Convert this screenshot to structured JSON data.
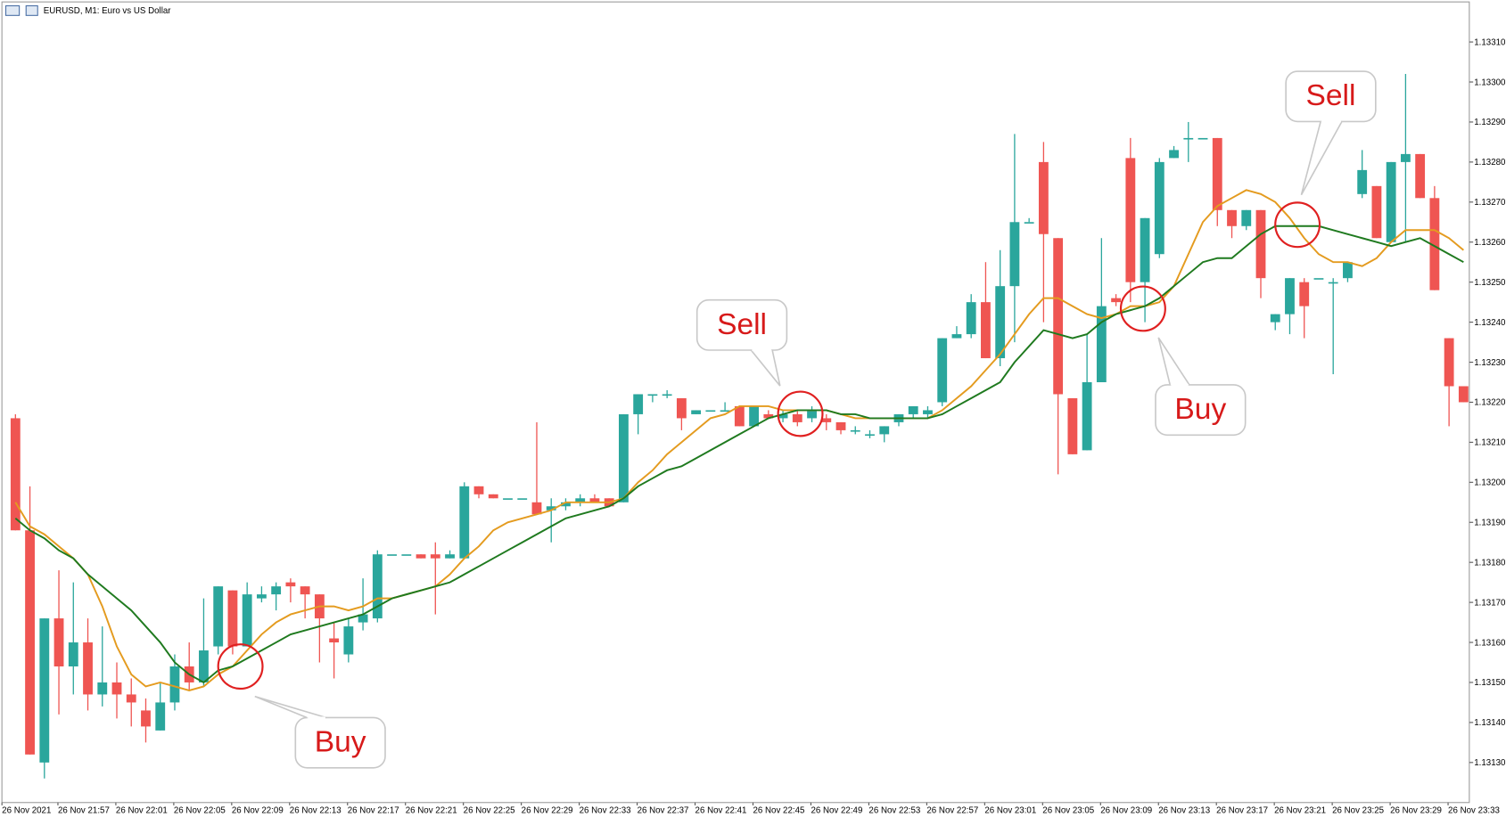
{
  "chart_data": {
    "type": "candlestick",
    "title": "EURUSD, M1:  Euro vs US Dollar",
    "up_color": "#2aa69c",
    "down_color": "#ef5552",
    "ylim": [
      1.1312,
      1.1332
    ],
    "yticks": [
      {
        "value": 1.1313,
        "label": "1.13130"
      },
      {
        "value": 1.1314,
        "label": "1.13140"
      },
      {
        "value": 1.1315,
        "label": "1.13150"
      },
      {
        "value": 1.1316,
        "label": "1.13160"
      },
      {
        "value": 1.1317,
        "label": "1.13170"
      },
      {
        "value": 1.1318,
        "label": "1.13180"
      },
      {
        "value": 1.1319,
        "label": "1.13190"
      },
      {
        "value": 1.132,
        "label": "1.13200"
      },
      {
        "value": 1.1321,
        "label": "1.13210"
      },
      {
        "value": 1.1322,
        "label": "1.13220"
      },
      {
        "value": 1.1323,
        "label": "1.13230"
      },
      {
        "value": 1.1324,
        "label": "1.13240"
      },
      {
        "value": 1.1325,
        "label": "1.13250"
      },
      {
        "value": 1.1326,
        "label": "1.13260"
      },
      {
        "value": 1.1327,
        "label": "1.13270"
      },
      {
        "value": 1.1328,
        "label": "1.13280"
      },
      {
        "value": 1.1329,
        "label": "1.13290"
      },
      {
        "value": 1.133,
        "label": "1.13300"
      },
      {
        "value": 1.1331,
        "label": "1.13310"
      }
    ],
    "x_labels": [
      "26 Nov 2021",
      "26 Nov 21:57",
      "26 Nov 22:01",
      "26 Nov 22:05",
      "26 Nov 22:09",
      "26 Nov 22:13",
      "26 Nov 22:17",
      "26 Nov 22:21",
      "26 Nov 22:25",
      "26 Nov 22:29",
      "26 Nov 22:33",
      "26 Nov 22:37",
      "26 Nov 22:41",
      "26 Nov 22:45",
      "26 Nov 22:49",
      "26 Nov 22:53",
      "26 Nov 22:57",
      "26 Nov 23:01",
      "26 Nov 23:05",
      "26 Nov 23:09",
      "26 Nov 23:13",
      "26 Nov 23:17",
      "26 Nov 23:21",
      "26 Nov 23:25",
      "26 Nov 23:29",
      "26 Nov 23:33"
    ],
    "open": [
      1.13216,
      1.13188,
      1.1313,
      1.13166,
      1.13154,
      1.1316,
      1.13147,
      1.1315,
      1.13147,
      1.13143,
      1.13138,
      1.13145,
      1.13154,
      1.1315,
      1.13159,
      1.13173,
      1.13159,
      1.13171,
      1.13172,
      1.13175,
      1.13174,
      1.13172,
      1.13161,
      1.13157,
      1.13165,
      1.13166,
      1.13182,
      1.13182,
      1.13182,
      1.13182,
      1.13181,
      1.13181,
      1.13199,
      1.13197,
      1.13196,
      1.13196,
      1.13195,
      1.13193,
      1.13194,
      1.13195,
      1.13196,
      1.13196,
      1.13195,
      1.13217,
      1.13222,
      1.13222,
      1.13221,
      1.13217,
      1.13218,
      1.13218,
      1.13219,
      1.13214,
      1.13217,
      1.13216,
      1.13217,
      1.13216,
      1.13216,
      1.13215,
      1.13213,
      1.13212,
      1.13212,
      1.13215,
      1.13217,
      1.13217,
      1.1322,
      1.13236,
      1.13237,
      1.13245,
      1.13231,
      1.13249,
      1.13265,
      1.1328,
      1.13261,
      1.13221,
      1.13208,
      1.13225,
      1.13246,
      1.13281,
      1.1325,
      1.13257,
      1.13281,
      1.13286,
      1.13286,
      1.13286,
      1.13268,
      1.13264,
      1.13268,
      1.1324,
      1.13242,
      1.1325,
      1.13251,
      1.1325,
      1.13251,
      1.13272,
      1.13274,
      1.1326,
      1.1328,
      1.13282,
      1.13271,
      1.13236,
      1.13224
    ],
    "high": [
      1.13217,
      1.13199,
      1.13166,
      1.13178,
      1.13175,
      1.13166,
      1.13164,
      1.13155,
      1.13151,
      1.13146,
      1.1315,
      1.13157,
      1.1316,
      1.13171,
      1.13174,
      1.13173,
      1.13175,
      1.13174,
      1.13175,
      1.13176,
      1.13174,
      1.13172,
      1.13165,
      1.13166,
      1.13176,
      1.13183,
      1.13182,
      1.13182,
      1.13182,
      1.13185,
      1.13183,
      1.132,
      1.13199,
      1.13197,
      1.13196,
      1.13196,
      1.13215,
      1.13196,
      1.13196,
      1.13197,
      1.13197,
      1.13196,
      1.13217,
      1.13222,
      1.13222,
      1.13223,
      1.13221,
      1.13218,
      1.13218,
      1.1322,
      1.13219,
      1.13219,
      1.13218,
      1.13218,
      1.13218,
      1.13219,
      1.13217,
      1.13215,
      1.13214,
      1.13213,
      1.13214,
      1.13217,
      1.13219,
      1.13219,
      1.13236,
      1.13239,
      1.13247,
      1.13255,
      1.13258,
      1.13287,
      1.13266,
      1.13285,
      1.13261,
      1.13221,
      1.13237,
      1.13261,
      1.13247,
      1.13286,
      1.13266,
      1.13281,
      1.13284,
      1.1329,
      1.13286,
      1.13286,
      1.13268,
      1.13268,
      1.13268,
      1.13242,
      1.13251,
      1.13251,
      1.13251,
      1.13251,
      1.13255,
      1.13283,
      1.13274,
      1.1328,
      1.13302,
      1.13282,
      1.13274,
      1.13236,
      1.13224
    ],
    "low": [
      1.13188,
      1.13132,
      1.13126,
      1.13142,
      1.13147,
      1.13143,
      1.13144,
      1.13141,
      1.13139,
      1.13135,
      1.13138,
      1.13143,
      1.13148,
      1.13149,
      1.13157,
      1.13157,
      1.13159,
      1.1317,
      1.13168,
      1.1317,
      1.13166,
      1.13155,
      1.13151,
      1.13155,
      1.13163,
      1.13165,
      1.13182,
      1.13182,
      1.13181,
      1.13167,
      1.13181,
      1.13181,
      1.13196,
      1.13196,
      1.13196,
      1.13196,
      1.13192,
      1.13185,
      1.13193,
      1.13194,
      1.13195,
      1.13194,
      1.13195,
      1.13212,
      1.1322,
      1.13221,
      1.13213,
      1.13217,
      1.13218,
      1.13218,
      1.13214,
      1.13214,
      1.13216,
      1.13215,
      1.13214,
      1.13215,
      1.13213,
      1.13212,
      1.13212,
      1.13211,
      1.1321,
      1.13214,
      1.13216,
      1.13216,
      1.13219,
      1.13236,
      1.13236,
      1.13231,
      1.13229,
      1.13235,
      1.13265,
      1.1324,
      1.13202,
      1.13207,
      1.13208,
      1.13225,
      1.13244,
      1.13245,
      1.1324,
      1.13256,
      1.13281,
      1.1328,
      1.13286,
      1.13264,
      1.13261,
      1.13263,
      1.13246,
      1.13238,
      1.13237,
      1.13236,
      1.13251,
      1.13227,
      1.1325,
      1.13271,
      1.13261,
      1.1326,
      1.1326,
      1.13271,
      1.13248,
      1.13214,
      1.1322
    ],
    "close": [
      1.13188,
      1.13132,
      1.13166,
      1.13154,
      1.1316,
      1.13147,
      1.1315,
      1.13147,
      1.13145,
      1.13139,
      1.13145,
      1.13154,
      1.1315,
      1.13158,
      1.13174,
      1.13159,
      1.13172,
      1.13172,
      1.13174,
      1.13174,
      1.13172,
      1.13166,
      1.1316,
      1.13164,
      1.13167,
      1.13182,
      1.13182,
      1.13182,
      1.13181,
      1.13181,
      1.13182,
      1.13199,
      1.13197,
      1.13196,
      1.13196,
      1.13196,
      1.13192,
      1.13194,
      1.13195,
      1.13196,
      1.13195,
      1.13194,
      1.13217,
      1.13222,
      1.13222,
      1.13222,
      1.13216,
      1.13218,
      1.13218,
      1.13218,
      1.13214,
      1.13219,
      1.13216,
      1.13217,
      1.13215,
      1.13218,
      1.13215,
      1.13213,
      1.13213,
      1.13212,
      1.13214,
      1.13217,
      1.13219,
      1.13218,
      1.13236,
      1.13237,
      1.13245,
      1.13231,
      1.13249,
      1.13265,
      1.13265,
      1.13262,
      1.13222,
      1.13207,
      1.13225,
      1.13244,
      1.13245,
      1.1325,
      1.13266,
      1.1328,
      1.13283,
      1.13286,
      1.13286,
      1.13268,
      1.13264,
      1.13268,
      1.13251,
      1.13242,
      1.13251,
      1.13244,
      1.13251,
      1.1325,
      1.13255,
      1.13278,
      1.13261,
      1.1328,
      1.13282,
      1.13271,
      1.13248,
      1.13224,
      1.1322
    ],
    "lines": [
      {
        "color": "#e49b1f",
        "values": [
          1.13195,
          1.13189,
          1.13187,
          1.13184,
          1.13181,
          1.13177,
          1.13169,
          1.13159,
          1.13152,
          1.13149,
          1.1315,
          1.13149,
          1.13148,
          1.13149,
          1.13152,
          1.13154,
          1.13158,
          1.13162,
          1.13165,
          1.13167,
          1.13168,
          1.13169,
          1.13169,
          1.13168,
          1.13169,
          1.13171,
          1.13171,
          1.13172,
          1.13173,
          1.13174,
          1.13177,
          1.13181,
          1.13184,
          1.13188,
          1.1319,
          1.13191,
          1.13192,
          1.13193,
          1.13195,
          1.13195,
          1.13195,
          1.13195,
          1.13196,
          1.132,
          1.13203,
          1.13207,
          1.1321,
          1.13213,
          1.13216,
          1.13217,
          1.13219,
          1.13219,
          1.13219,
          1.13218,
          1.13218,
          1.13218,
          1.13218,
          1.13217,
          1.13216,
          1.13216,
          1.13216,
          1.13216,
          1.13216,
          1.13216,
          1.13218,
          1.13221,
          1.13224,
          1.13228,
          1.13232,
          1.13237,
          1.13242,
          1.13246,
          1.13246,
          1.13244,
          1.13242,
          1.13241,
          1.13242,
          1.13244,
          1.13244,
          1.13245,
          1.13249,
          1.13257,
          1.13265,
          1.13269,
          1.13271,
          1.13273,
          1.13272,
          1.1327,
          1.13266,
          1.13261,
          1.13257,
          1.13255,
          1.13255,
          1.13254,
          1.13256,
          1.1326,
          1.13263,
          1.13263,
          1.13263,
          1.13261,
          1.13258
        ]
      },
      {
        "color": "#1f7a1f",
        "values": [
          1.13191,
          1.13188,
          1.13186,
          1.13183,
          1.13181,
          1.13177,
          1.13174,
          1.13171,
          1.13168,
          1.13164,
          1.1316,
          1.13155,
          1.13152,
          1.1315,
          1.13153,
          1.13154,
          1.13156,
          1.13158,
          1.1316,
          1.13162,
          1.13163,
          1.13164,
          1.13165,
          1.13166,
          1.13167,
          1.13169,
          1.13171,
          1.13172,
          1.13173,
          1.13174,
          1.13175,
          1.13177,
          1.13179,
          1.13181,
          1.13183,
          1.13185,
          1.13187,
          1.13189,
          1.13191,
          1.13192,
          1.13193,
          1.13194,
          1.13196,
          1.13199,
          1.13201,
          1.13203,
          1.13204,
          1.13206,
          1.13208,
          1.1321,
          1.13212,
          1.13214,
          1.13216,
          1.13217,
          1.13218,
          1.13218,
          1.13218,
          1.13217,
          1.13217,
          1.13216,
          1.13216,
          1.13216,
          1.13216,
          1.13216,
          1.13217,
          1.13219,
          1.13221,
          1.13223,
          1.13225,
          1.1323,
          1.13234,
          1.13238,
          1.13237,
          1.13236,
          1.13237,
          1.1324,
          1.13242,
          1.13243,
          1.13244,
          1.13246,
          1.13249,
          1.13252,
          1.13255,
          1.13256,
          1.13256,
          1.13259,
          1.13262,
          1.13264,
          1.13264,
          1.13264,
          1.13264,
          1.13263,
          1.13262,
          1.13261,
          1.1326,
          1.13259,
          1.1326,
          1.13261,
          1.13259,
          1.13257,
          1.13255
        ]
      }
    ],
    "annotations": [
      {
        "text": "Buy"
      },
      {
        "text": "Sell"
      },
      {
        "text": "Buy"
      },
      {
        "text": "Sell"
      }
    ]
  }
}
